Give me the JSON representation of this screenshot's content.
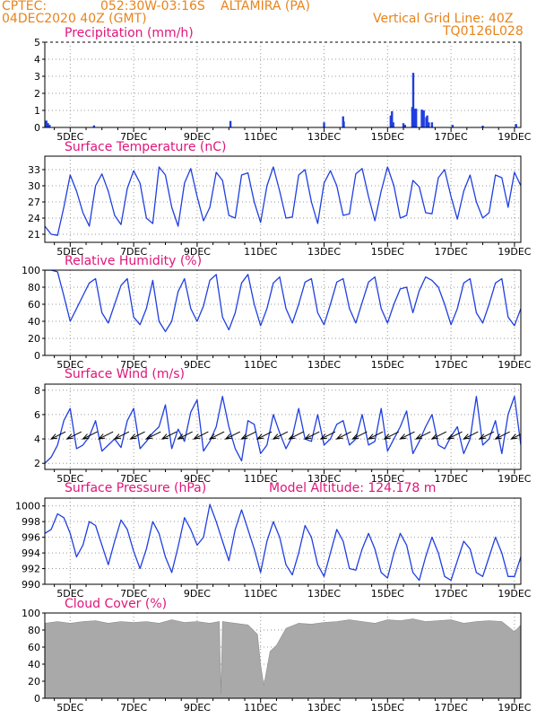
{
  "header": {
    "agency": "CPTEC:",
    "coords": "052:30W-03:16S",
    "station": "ALTAMIRA (PA)",
    "run_date": "04DEC2020 40Z (GMT)",
    "grid_note": "Vertical Grid Line: 40Z",
    "code": "TQ0126L028"
  },
  "date_labels": [
    "5DEC",
    "7DEC",
    "9DEC",
    "11DEC",
    "13DEC",
    "15DEC",
    "17DEC",
    "19DEC"
  ],
  "model_altitude": "Model Altitude: 124.178 m",
  "colors": {
    "header": "#e8841c",
    "title": "#e0157a",
    "series": "#1f3fe0",
    "cloud": "#a9a9a9",
    "grid": "#999999"
  },
  "chart_data": [
    {
      "type": "bar",
      "title": "Precipitation (mm/h)",
      "ylim": [
        0,
        5
      ],
      "yticks": [
        0,
        1,
        2,
        3,
        4,
        5
      ],
      "x_range_days": [
        4.2,
        19.2
      ],
      "bars": [
        {
          "day": 4.25,
          "value": 0.4
        },
        {
          "day": 4.3,
          "value": 0.25
        },
        {
          "day": 4.35,
          "value": 0.15
        },
        {
          "day": 5.75,
          "value": 0.12
        },
        {
          "day": 10.05,
          "value": 0.38
        },
        {
          "day": 13.0,
          "value": 0.3
        },
        {
          "day": 13.6,
          "value": 0.65
        },
        {
          "day": 13.62,
          "value": 0.35
        },
        {
          "day": 15.1,
          "value": 0.7
        },
        {
          "day": 15.14,
          "value": 0.95
        },
        {
          "day": 15.18,
          "value": 0.3
        },
        {
          "day": 15.5,
          "value": 0.25
        },
        {
          "day": 15.55,
          "value": 0.15
        },
        {
          "day": 15.78,
          "value": 1.2
        },
        {
          "day": 15.81,
          "value": 3.2
        },
        {
          "day": 15.84,
          "value": 1.1
        },
        {
          "day": 15.87,
          "value": 0.6
        },
        {
          "day": 15.9,
          "value": 1.1
        },
        {
          "day": 16.08,
          "value": 1.05
        },
        {
          "day": 16.11,
          "value": 0.4
        },
        {
          "day": 16.14,
          "value": 1.0
        },
        {
          "day": 16.22,
          "value": 0.6
        },
        {
          "day": 16.25,
          "value": 0.7
        },
        {
          "day": 16.3,
          "value": 0.3
        },
        {
          "day": 16.4,
          "value": 0.3
        },
        {
          "day": 17.05,
          "value": 0.15
        },
        {
          "day": 18.0,
          "value": 0.1
        },
        {
          "day": 19.05,
          "value": 0.2
        }
      ]
    },
    {
      "type": "line",
      "title": "Surface Temperature (nC)",
      "ylim": [
        19.5,
        35.5
      ],
      "yticks": [
        21,
        24,
        27,
        30,
        33
      ],
      "x_range_days": [
        4.2,
        19.2
      ],
      "x": [
        4.2,
        4.4,
        4.6,
        4.8,
        5.0,
        5.2,
        5.4,
        5.6,
        5.8,
        6.0,
        6.2,
        6.4,
        6.6,
        6.8,
        7.0,
        7.2,
        7.4,
        7.6,
        7.8,
        8.0,
        8.2,
        8.4,
        8.6,
        8.8,
        9.0,
        9.2,
        9.4,
        9.6,
        9.8,
        10.0,
        10.2,
        10.4,
        10.6,
        10.8,
        11.0,
        11.2,
        11.4,
        11.6,
        11.8,
        12.0,
        12.2,
        12.4,
        12.6,
        12.8,
        13.0,
        13.2,
        13.4,
        13.6,
        13.8,
        14.0,
        14.2,
        14.4,
        14.6,
        14.8,
        15.0,
        15.2,
        15.4,
        15.6,
        15.8,
        16.0,
        16.2,
        16.4,
        16.6,
        16.8,
        17.0,
        17.2,
        17.4,
        17.6,
        17.8,
        18.0,
        18.2,
        18.4,
        18.6,
        18.8,
        19.0,
        19.2
      ],
      "values": [
        22.5,
        21.0,
        20.8,
        26.0,
        32.0,
        29.0,
        25.0,
        22.5,
        30.0,
        32.2,
        29.0,
        24.5,
        22.8,
        29.5,
        32.8,
        30.5,
        24.0,
        23.0,
        33.5,
        32.0,
        26.0,
        22.5,
        30.5,
        33.2,
        28.0,
        23.5,
        26.0,
        32.5,
        31.0,
        24.5,
        24.0,
        32.0,
        32.4,
        27.0,
        23.2,
        30.0,
        33.5,
        29.0,
        24.0,
        24.2,
        32.0,
        33.0,
        27.0,
        23.0,
        30.5,
        32.8,
        30.0,
        24.5,
        24.8,
        32.2,
        33.2,
        28.0,
        23.5,
        29.0,
        33.5,
        30.0,
        24.0,
        24.5,
        31.0,
        29.8,
        25.0,
        24.8,
        31.5,
        33.0,
        28.0,
        23.8,
        29.0,
        32.0,
        27.0,
        24.0,
        25.0,
        32.0,
        31.5,
        26.0,
        32.5,
        30.0
      ]
    },
    {
      "type": "line",
      "title": "Relative Humidity (%)",
      "ylim": [
        0,
        100
      ],
      "yticks": [
        0,
        20,
        40,
        60,
        80,
        100
      ],
      "x_range_days": [
        4.2,
        19.2
      ],
      "x": [
        4.2,
        4.4,
        4.6,
        4.8,
        5.0,
        5.2,
        5.4,
        5.6,
        5.8,
        6.0,
        6.2,
        6.4,
        6.6,
        6.8,
        7.0,
        7.2,
        7.4,
        7.6,
        7.8,
        8.0,
        8.2,
        8.4,
        8.6,
        8.8,
        9.0,
        9.2,
        9.4,
        9.6,
        9.8,
        10.0,
        10.2,
        10.4,
        10.6,
        10.8,
        11.0,
        11.2,
        11.4,
        11.6,
        11.8,
        12.0,
        12.2,
        12.4,
        12.6,
        12.8,
        13.0,
        13.2,
        13.4,
        13.6,
        13.8,
        14.0,
        14.2,
        14.4,
        14.6,
        14.8,
        15.0,
        15.2,
        15.4,
        15.6,
        15.8,
        16.0,
        16.2,
        16.4,
        16.6,
        16.8,
        17.0,
        17.2,
        17.4,
        17.6,
        17.8,
        18.0,
        18.2,
        18.4,
        18.6,
        18.8,
        19.0,
        19.2
      ],
      "values": [
        100,
        100,
        98,
        70,
        40,
        55,
        70,
        85,
        90,
        50,
        38,
        60,
        82,
        90,
        45,
        36,
        55,
        88,
        40,
        28,
        40,
        75,
        90,
        55,
        40,
        58,
        88,
        95,
        45,
        30,
        50,
        85,
        95,
        60,
        35,
        55,
        85,
        92,
        55,
        38,
        60,
        86,
        90,
        50,
        36,
        60,
        86,
        90,
        55,
        38,
        62,
        86,
        92,
        55,
        38,
        60,
        78,
        80,
        50,
        76,
        92,
        88,
        80,
        60,
        36,
        55,
        85,
        90,
        50,
        38,
        60,
        85,
        90,
        45,
        35,
        55
      ]
    },
    {
      "type": "line",
      "title": "Surface Wind (m/s)",
      "ylim": [
        1.5,
        8.5
      ],
      "yticks": [
        2,
        4,
        6,
        8
      ],
      "x_range_days": [
        4.2,
        19.2
      ],
      "x": [
        4.2,
        4.4,
        4.6,
        4.8,
        5.0,
        5.2,
        5.4,
        5.6,
        5.8,
        6.0,
        6.2,
        6.4,
        6.6,
        6.8,
        7.0,
        7.2,
        7.4,
        7.6,
        7.8,
        8.0,
        8.2,
        8.4,
        8.6,
        8.8,
        9.0,
        9.2,
        9.4,
        9.6,
        9.8,
        10.0,
        10.2,
        10.4,
        10.6,
        10.8,
        11.0,
        11.2,
        11.4,
        11.6,
        11.8,
        12.0,
        12.2,
        12.4,
        12.6,
        12.8,
        13.0,
        13.2,
        13.4,
        13.6,
        13.8,
        14.0,
        14.2,
        14.4,
        14.6,
        14.8,
        15.0,
        15.2,
        15.4,
        15.6,
        15.8,
        16.0,
        16.2,
        16.4,
        16.6,
        16.8,
        17.0,
        17.2,
        17.4,
        17.6,
        17.8,
        18.0,
        18.2,
        18.4,
        18.6,
        18.8,
        19.0,
        19.2
      ],
      "values": [
        2.0,
        2.5,
        3.5,
        5.5,
        6.5,
        3.2,
        3.5,
        4.2,
        5.5,
        3.0,
        3.5,
        4.0,
        3.3,
        5.5,
        6.5,
        3.2,
        3.8,
        4.5,
        5.0,
        6.8,
        3.2,
        4.8,
        3.8,
        6.2,
        7.2,
        3.0,
        3.8,
        5.0,
        7.5,
        5.0,
        3.2,
        2.2,
        5.5,
        5.2,
        2.8,
        3.5,
        6.0,
        4.5,
        3.2,
        4.2,
        6.5,
        4.0,
        3.8,
        6.0,
        3.5,
        4.0,
        5.2,
        5.5,
        3.5,
        4.0,
        6.0,
        3.5,
        3.8,
        6.5,
        3.0,
        4.0,
        5.0,
        6.3,
        2.8,
        3.8,
        5.0,
        6.0,
        3.5,
        3.2,
        4.2,
        5.0,
        2.8,
        4.0,
        7.5,
        3.5,
        4.0,
        5.5,
        2.8,
        6.0,
        7.5,
        3.5
      ],
      "arrows_days": [
        4.4,
        4.9,
        5.4,
        5.9,
        6.4,
        6.9,
        7.4,
        7.9,
        8.4,
        8.9,
        9.4,
        9.9,
        10.4,
        10.9,
        11.4,
        11.9,
        12.4,
        12.9,
        13.4,
        13.9,
        14.4,
        14.9,
        15.4,
        15.9,
        16.4,
        16.9,
        17.4,
        17.9,
        18.4,
        18.9
      ]
    },
    {
      "type": "line",
      "title": "Surface Pressure (hPa)",
      "ylim": [
        990,
        1001
      ],
      "yticks": [
        990,
        992,
        994,
        996,
        998,
        1000
      ],
      "x_range_days": [
        4.2,
        19.2
      ],
      "x": [
        4.2,
        4.4,
        4.6,
        4.8,
        5.0,
        5.2,
        5.4,
        5.6,
        5.8,
        6.0,
        6.2,
        6.4,
        6.6,
        6.8,
        7.0,
        7.2,
        7.4,
        7.6,
        7.8,
        8.0,
        8.2,
        8.4,
        8.6,
        8.8,
        9.0,
        9.2,
        9.4,
        9.6,
        9.8,
        10.0,
        10.2,
        10.4,
        10.6,
        10.8,
        11.0,
        11.2,
        11.4,
        11.6,
        11.8,
        12.0,
        12.2,
        12.4,
        12.6,
        12.8,
        13.0,
        13.2,
        13.4,
        13.6,
        13.8,
        14.0,
        14.2,
        14.4,
        14.6,
        14.8,
        15.0,
        15.2,
        15.4,
        15.6,
        15.8,
        16.0,
        16.2,
        16.4,
        16.6,
        16.8,
        17.0,
        17.2,
        17.4,
        17.6,
        17.8,
        18.0,
        18.2,
        18.4,
        18.6,
        18.8,
        19.0,
        19.2
      ],
      "values": [
        996.5,
        997.0,
        999.0,
        998.5,
        996.5,
        993.5,
        995.0,
        998.0,
        997.5,
        995.0,
        992.5,
        995.5,
        998.2,
        997.0,
        994.2,
        992.0,
        994.5,
        998.0,
        996.5,
        993.5,
        991.5,
        994.8,
        998.5,
        997.0,
        995.0,
        996.0,
        1000.2,
        998.0,
        995.5,
        993.0,
        997.0,
        999.5,
        997.0,
        994.5,
        991.5,
        995.5,
        998.0,
        996.0,
        992.5,
        991.2,
        994.0,
        997.5,
        996.0,
        992.5,
        991.0,
        994.0,
        997.0,
        995.5,
        992.0,
        991.8,
        994.5,
        996.5,
        994.5,
        991.5,
        990.8,
        994.0,
        996.5,
        995.0,
        991.5,
        990.5,
        993.5,
        996.0,
        994.0,
        991.0,
        990.5,
        993.0,
        995.5,
        994.5,
        991.5,
        991.0,
        993.5,
        996.0,
        994.0,
        991.0,
        991.0,
        993.5
      ]
    },
    {
      "type": "area",
      "title": "Cloud Cover (%)",
      "ylim": [
        0,
        100
      ],
      "yticks": [
        0,
        20,
        40,
        60,
        80,
        100
      ],
      "x_range_days": [
        4.2,
        19.2
      ],
      "x": [
        4.2,
        4.6,
        5.0,
        5.4,
        5.8,
        6.2,
        6.6,
        7.0,
        7.4,
        7.8,
        8.2,
        8.6,
        9.0,
        9.4,
        9.7,
        9.75,
        9.8,
        10.2,
        10.6,
        10.9,
        11.0,
        11.1,
        11.2,
        11.3,
        11.5,
        11.8,
        12.2,
        12.6,
        13.0,
        13.4,
        13.8,
        14.2,
        14.6,
        15.0,
        15.4,
        15.8,
        16.2,
        16.6,
        17.0,
        17.4,
        17.8,
        18.2,
        18.6,
        19.0,
        19.2
      ],
      "values": [
        88,
        90,
        88,
        90,
        91,
        88,
        90,
        89,
        90,
        88,
        92,
        89,
        90,
        88,
        90,
        5,
        90,
        88,
        86,
        75,
        40,
        15,
        35,
        55,
        62,
        82,
        88,
        87,
        89,
        90,
        92,
        90,
        88,
        92,
        91,
        93,
        90,
        91,
        92,
        88,
        90,
        91,
        90,
        78,
        86
      ],
      "labels": [
        "Cloud Cover (%)"
      ]
    }
  ]
}
